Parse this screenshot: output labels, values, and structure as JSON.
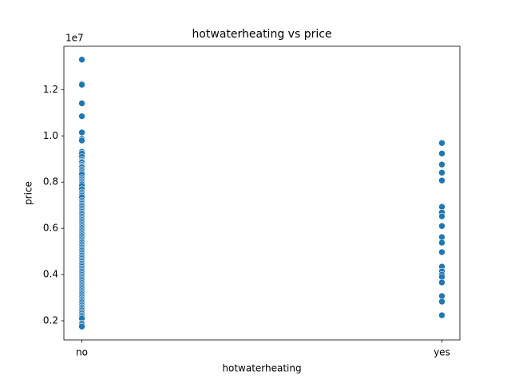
{
  "chart_data": {
    "type": "scatter",
    "title": "hotwaterheating vs price",
    "x_label": "hotwaterheating",
    "y_label": "price",
    "y_offset_label": "1e7",
    "color": "#1f77b4",
    "categories": [
      "no",
      "yes"
    ],
    "values": [
      [
        13300000,
        12250000,
        12215000,
        11410000,
        10850000,
        10150000,
        9870000,
        9800000,
        9310000,
        9240000,
        9100000,
        8960000,
        8890000,
        8855000,
        8750000,
        8680000,
        8645000,
        8540000,
        8470000,
        8400000,
        8330000,
        8190000,
        8120000,
        8050000,
        7980000,
        7910000,
        7840000,
        7700000,
        7560000,
        7490000,
        7420000,
        7350000,
        7210000,
        7140000,
        7070000,
        7000000,
        6930000,
        6860000,
        6790000,
        6720000,
        6650000,
        6580000,
        6510000,
        6440000,
        6370000,
        6300000,
        6230000,
        6160000,
        6090000,
        6020000,
        5950000,
        5880000,
        5810000,
        5740000,
        5670000,
        5600000,
        5530000,
        5460000,
        5390000,
        5320000,
        5250000,
        5180000,
        5110000,
        5040000,
        4970000,
        4900000,
        4830000,
        4760000,
        4690000,
        4620000,
        4550000,
        4480000,
        4410000,
        4340000,
        4270000,
        4200000,
        4130000,
        4060000,
        3990000,
        3920000,
        3850000,
        3780000,
        3710000,
        3640000,
        3570000,
        3500000,
        3430000,
        3360000,
        3290000,
        3220000,
        3150000,
        3080000,
        3010000,
        2940000,
        2870000,
        2800000,
        2730000,
        2660000,
        2590000,
        2520000,
        2450000,
        2380000,
        2310000,
        2240000,
        2170000,
        2100000,
        1890000,
        1820000,
        1750000
      ],
      [
        9690000,
        9240000,
        8760000,
        8410000,
        8070000,
        6930000,
        6690000,
        6520000,
        6100000,
        5620000,
        5380000,
        4970000,
        4340000,
        4140000,
        4000000,
        3900000,
        3660000,
        3070000,
        2830000,
        2240000
      ]
    ],
    "ylim": [
      1172500,
      13877500
    ],
    "yticks": [
      {
        "value": 2000000,
        "label": "0.2"
      },
      {
        "value": 4000000,
        "label": "0.4"
      },
      {
        "value": 6000000,
        "label": "0.6"
      },
      {
        "value": 8000000,
        "label": "0.8"
      },
      {
        "value": 10000000,
        "label": "1.0"
      },
      {
        "value": 12000000,
        "label": "1.2"
      }
    ]
  }
}
